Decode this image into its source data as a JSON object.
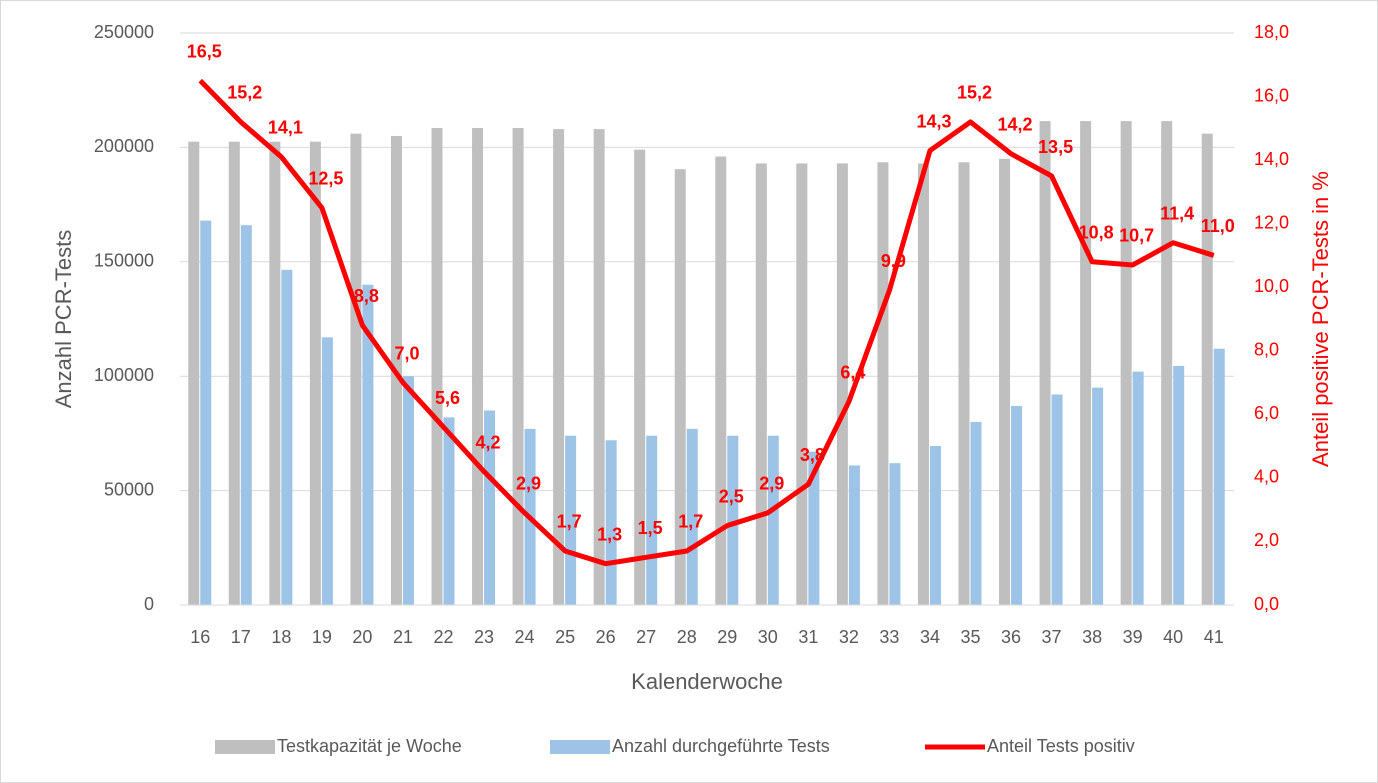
{
  "chart_data": {
    "type": "bar",
    "x_label": "Kalenderwoche",
    "y_label": "Anzahl PCR-Tests",
    "y2_label": "Anteil positive PCR-Tests in %",
    "categories": [
      "16",
      "17",
      "18",
      "19",
      "20",
      "21",
      "22",
      "23",
      "24",
      "25",
      "26",
      "27",
      "28",
      "29",
      "30",
      "31",
      "32",
      "33",
      "34",
      "35",
      "36",
      "37",
      "38",
      "39",
      "40",
      "41"
    ],
    "ylim": [
      0,
      250000
    ],
    "yticks": [
      0,
      50000,
      100000,
      150000,
      200000,
      250000
    ],
    "y2lim": [
      0,
      18
    ],
    "y2ticks": [
      {
        "value": 0,
        "label": "0,0"
      },
      {
        "value": 2,
        "label": "2,0"
      },
      {
        "value": 4,
        "label": "4,0"
      },
      {
        "value": 6,
        "label": "6,0"
      },
      {
        "value": 8,
        "label": "8,0"
      },
      {
        "value": 10,
        "label": "10,0"
      },
      {
        "value": 12,
        "label": "12,0"
      },
      {
        "value": 14,
        "label": "14,0"
      },
      {
        "value": 16,
        "label": "16,0"
      },
      {
        "value": 18,
        "label": "18,0"
      }
    ],
    "grid": true,
    "legend": "bottom",
    "series": [
      {
        "name": "Testkapazität je Woche",
        "type": "bar",
        "color": "#bfbfbf",
        "values": [
          202500,
          202500,
          202500,
          202500,
          206000,
          205000,
          208500,
          208500,
          208500,
          208000,
          208000,
          199000,
          190500,
          196000,
          193000,
          193000,
          193000,
          193500,
          193000,
          193500,
          195000,
          211500,
          211500,
          211500,
          211500,
          206000
        ]
      },
      {
        "name": "Anzahl durchgeführte Tests",
        "type": "bar",
        "color": "#9dc3e6",
        "values": [
          168000,
          166000,
          146500,
          117000,
          140000,
          100000,
          82000,
          85000,
          77000,
          74000,
          72000,
          74000,
          77000,
          74000,
          74000,
          67000,
          61000,
          62000,
          69500,
          80000,
          87000,
          92000,
          95000,
          102000,
          104500,
          112000
        ]
      },
      {
        "name": "Anteil Tests positiv",
        "type": "line",
        "axis": "y2",
        "color": "#ff0000",
        "values": [
          16.5,
          15.2,
          14.1,
          12.5,
          8.8,
          7.0,
          5.6,
          4.2,
          2.9,
          1.7,
          1.3,
          1.5,
          1.7,
          2.5,
          2.9,
          3.8,
          6.4,
          9.9,
          14.3,
          15.2,
          14.2,
          13.5,
          10.8,
          10.7,
          11.4,
          11.0
        ],
        "value_labels": [
          "16,5",
          "15,2",
          "14,1",
          "12,5",
          "8,8",
          "7,0",
          "5,6",
          "4,2",
          "2,9",
          "1,7",
          "1,3",
          "1,5",
          "1,7",
          "2,5",
          "2,9",
          "3,8",
          "6,4",
          "9,9",
          "14,3",
          "15,2",
          "14,2",
          "13,5",
          "10,8",
          "10,7",
          "11,4",
          "11,0"
        ]
      }
    ]
  }
}
